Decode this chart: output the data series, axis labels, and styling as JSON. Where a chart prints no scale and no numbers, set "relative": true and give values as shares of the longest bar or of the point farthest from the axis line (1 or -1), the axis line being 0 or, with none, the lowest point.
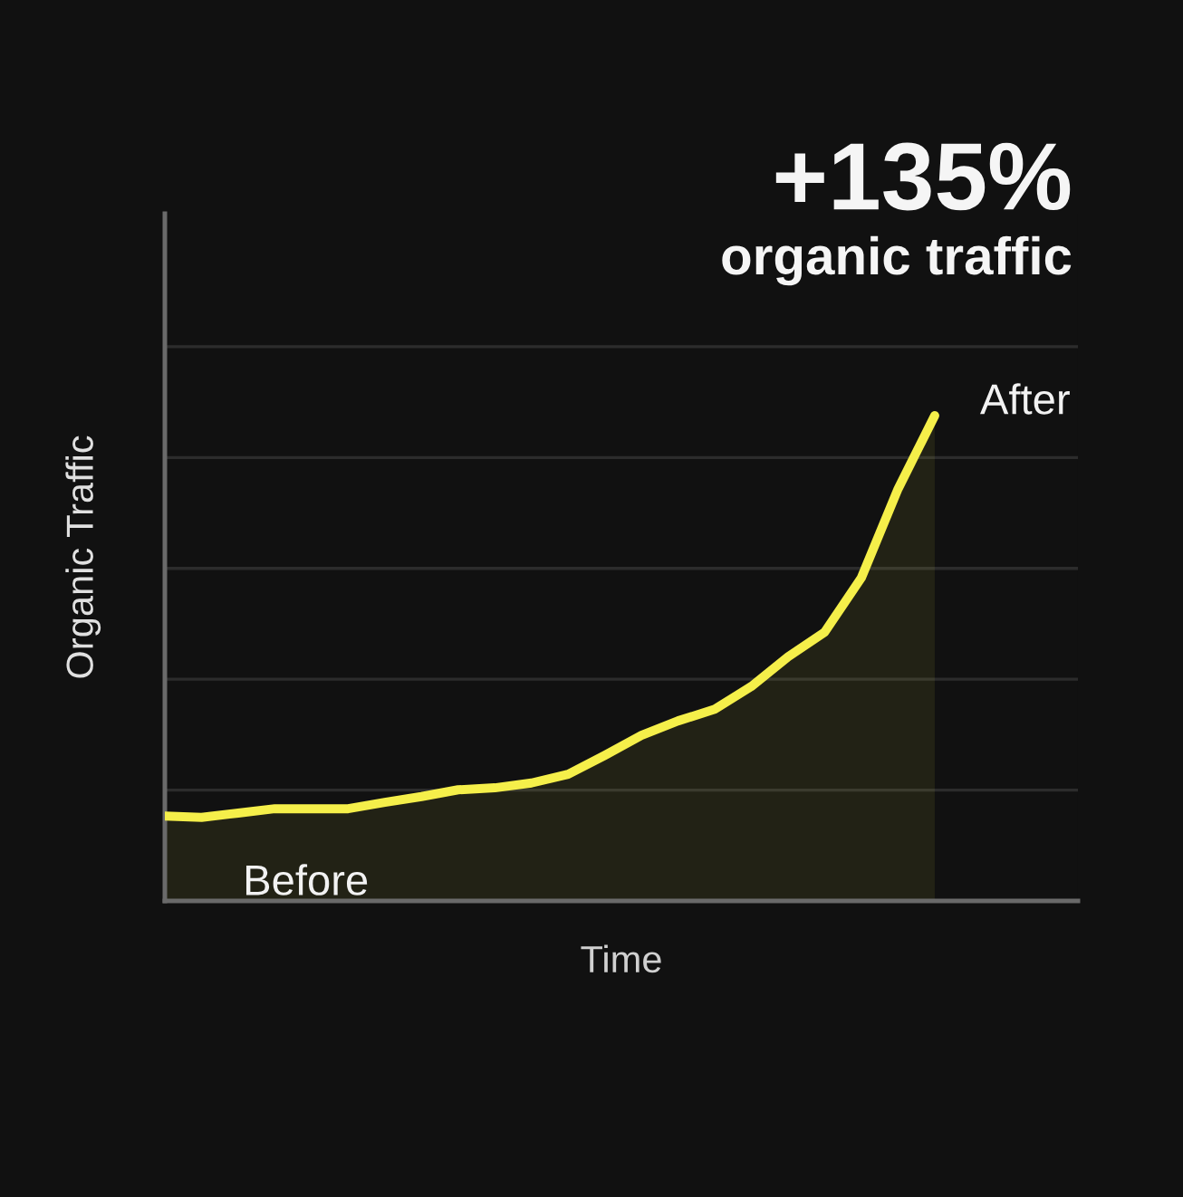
{
  "chart_data": {
    "type": "area",
    "title": "+135%",
    "subtitle": "organic traffic",
    "xlabel": "Time",
    "ylabel": "Organic Traffic",
    "categories": [
      null,
      null,
      null,
      null,
      null,
      null,
      null,
      null,
      null,
      null,
      null,
      null,
      null,
      null,
      null,
      null,
      null,
      null,
      null,
      null,
      null,
      null
    ],
    "series": [
      {
        "color": "#f5ef4a",
        "values": [
          0.175,
          0.172,
          0.181,
          0.19,
          0.19,
          0.19,
          0.203,
          0.215,
          0.229,
          0.233,
          0.243,
          0.261,
          0.3,
          0.341,
          0.371,
          0.395,
          0.442,
          0.503,
          0.554,
          0.666,
          0.849,
          1.0
        ]
      }
    ],
    "relative": true,
    "grid": "y",
    "annotations": [
      "Before",
      "After"
    ]
  }
}
